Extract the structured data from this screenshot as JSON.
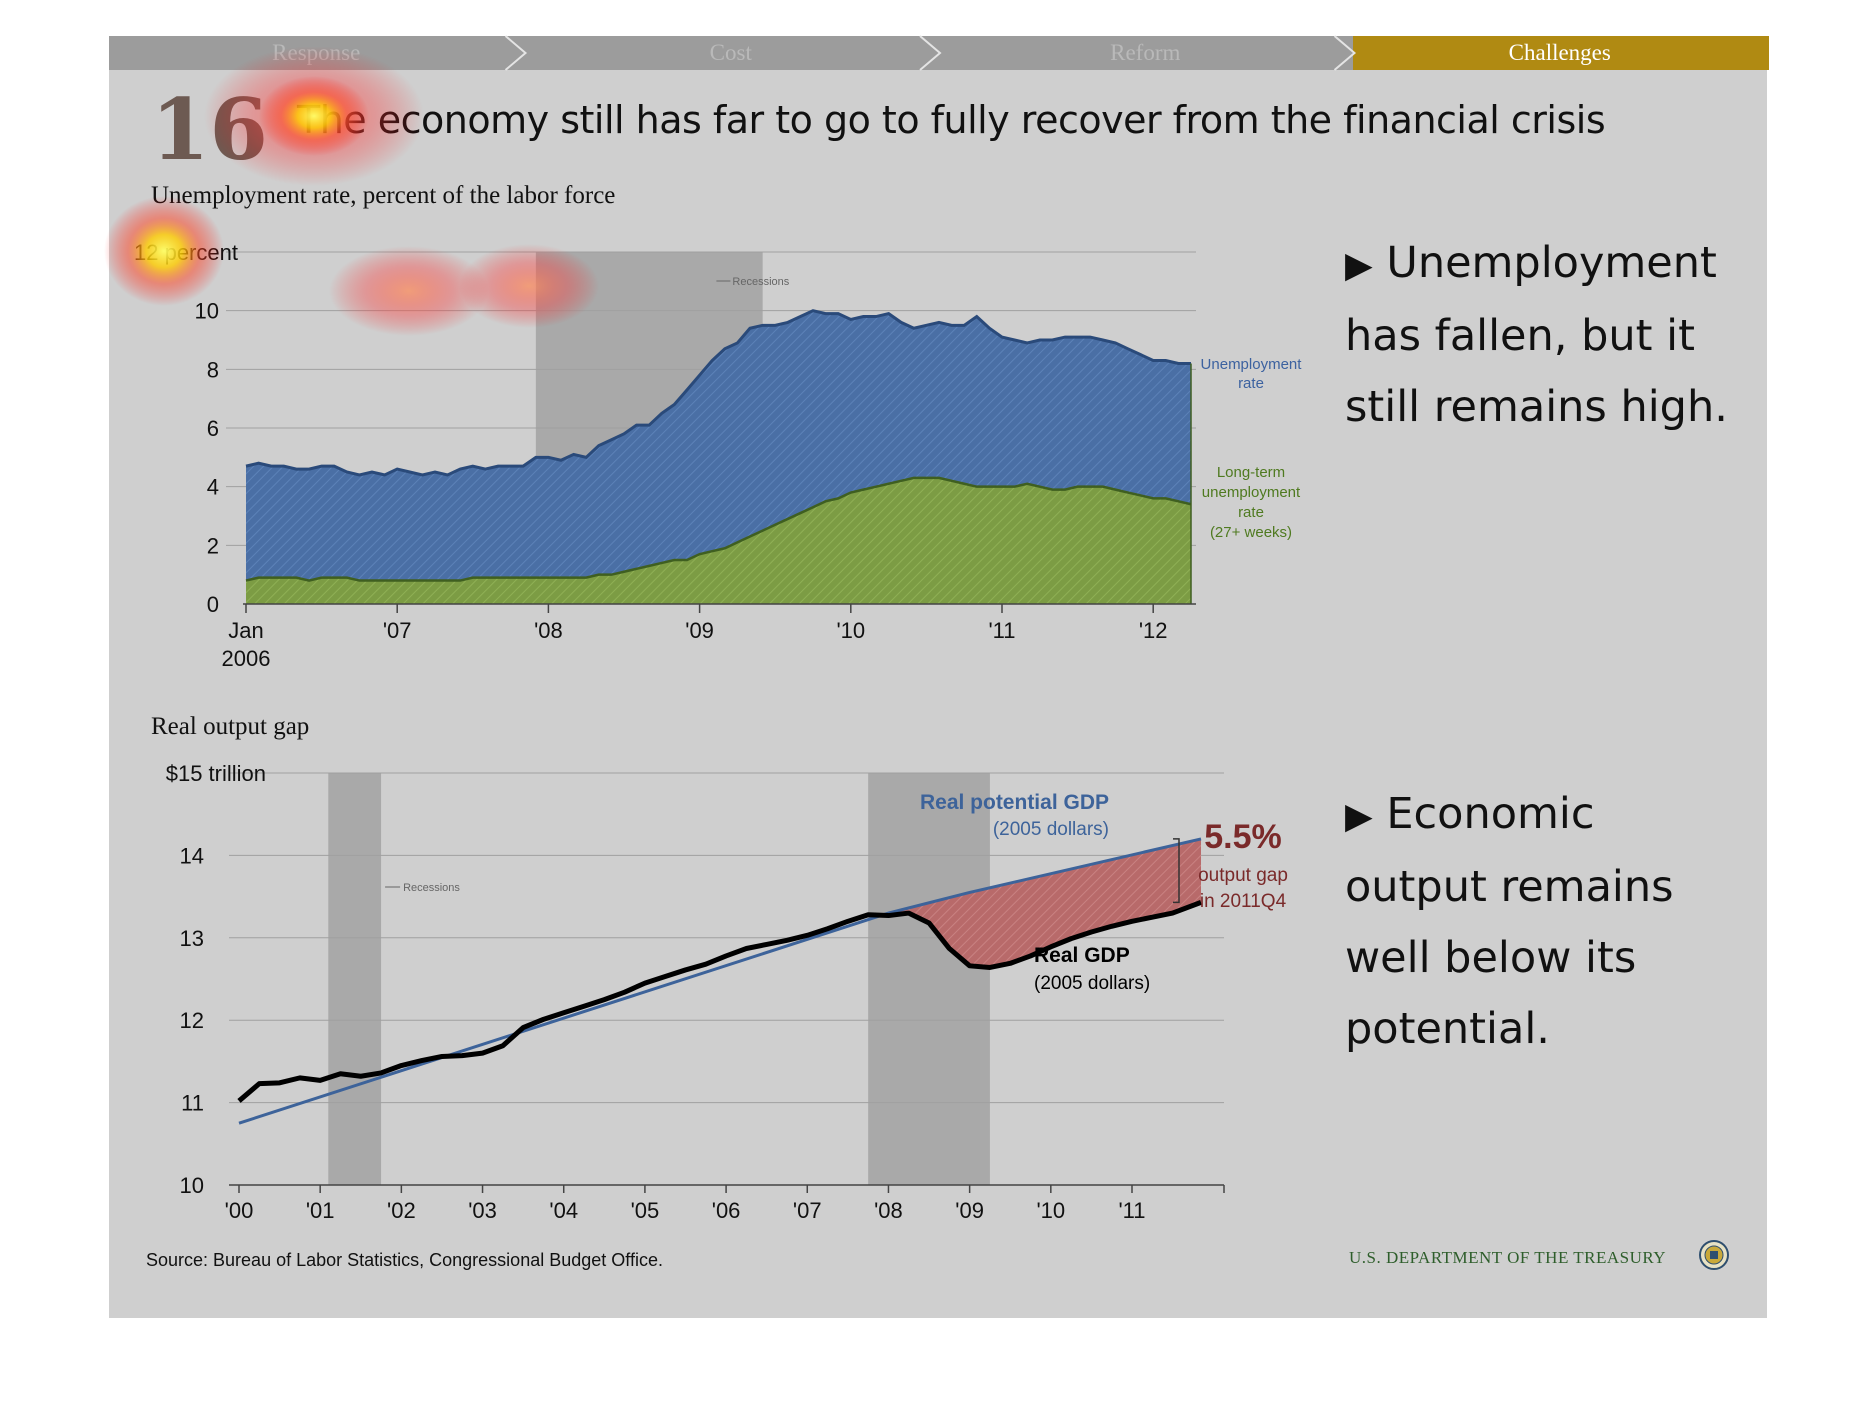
{
  "nav": {
    "tabs": [
      {
        "label": "Response",
        "active": false
      },
      {
        "label": "Cost",
        "active": false
      },
      {
        "label": "Reform",
        "active": false
      },
      {
        "label": "Challenges",
        "active": true
      }
    ],
    "inactive_color": "#9c9c9c",
    "active_color": "#b08a12"
  },
  "slide": {
    "number": "16",
    "title": "The economy still has far to go to fully recover from the financial crisis"
  },
  "bullets": [
    {
      "text": "Unemployment has fallen, but it still remains high."
    },
    {
      "text": "Economic output remains well below its potential."
    }
  ],
  "footer": {
    "source": "Source: Bureau of Labor Statistics, Congressional Budget Office.",
    "agency": "U.S. DEPARTMENT OF THE TREASURY",
    "seal_icon": "treasury-seal-icon"
  },
  "chart_data": [
    {
      "type": "area",
      "title": "Unemployment rate, percent of the labor force",
      "ylim": [
        0,
        12
      ],
      "yticks": [
        {
          "value": 0,
          "label": "0"
        },
        {
          "value": 2,
          "label": "2"
        },
        {
          "value": 4,
          "label": "4"
        },
        {
          "value": 6,
          "label": "6"
        },
        {
          "value": 8,
          "label": "8"
        },
        {
          "value": 10,
          "label": "10"
        },
        {
          "value": 12,
          "label": "12 percent"
        }
      ],
      "xticks": [
        {
          "x": 2006,
          "label": "Jan",
          "label2": "2006"
        },
        {
          "x": 2007,
          "label": "'07"
        },
        {
          "x": 2008,
          "label": "'08"
        },
        {
          "x": 2009,
          "label": "'09"
        },
        {
          "x": 2010,
          "label": "'10"
        },
        {
          "x": 2011,
          "label": "'11"
        },
        {
          "x": 2012,
          "label": "'12"
        }
      ],
      "xlim": [
        2006,
        2012.25
      ],
      "recession": {
        "start": 2007.917,
        "end": 2009.417,
        "label": "Recessions"
      },
      "grid": true,
      "series": [
        {
          "name": "Unemployment rate",
          "color": "#4a6fa5",
          "x": [
            2006,
            2006.083,
            2006.167,
            2006.25,
            2006.333,
            2006.417,
            2006.5,
            2006.583,
            2006.667,
            2006.75,
            2006.833,
            2006.917,
            2007,
            2007.083,
            2007.167,
            2007.25,
            2007.333,
            2007.417,
            2007.5,
            2007.583,
            2007.667,
            2007.75,
            2007.833,
            2007.917,
            2008,
            2008.083,
            2008.167,
            2008.25,
            2008.333,
            2008.417,
            2008.5,
            2008.583,
            2008.667,
            2008.75,
            2008.833,
            2008.917,
            2009,
            2009.083,
            2009.167,
            2009.25,
            2009.333,
            2009.417,
            2009.5,
            2009.583,
            2009.667,
            2009.75,
            2009.833,
            2009.917,
            2010,
            2010.083,
            2010.167,
            2010.25,
            2010.333,
            2010.417,
            2010.5,
            2010.583,
            2010.667,
            2010.75,
            2010.833,
            2010.917,
            2011,
            2011.083,
            2011.167,
            2011.25,
            2011.333,
            2011.417,
            2011.5,
            2011.583,
            2011.667,
            2011.75,
            2011.833,
            2011.917,
            2012,
            2012.083,
            2012.167,
            2012.25
          ],
          "values": [
            4.7,
            4.8,
            4.7,
            4.7,
            4.6,
            4.6,
            4.7,
            4.7,
            4.5,
            4.4,
            4.5,
            4.4,
            4.6,
            4.5,
            4.4,
            4.5,
            4.4,
            4.6,
            4.7,
            4.6,
            4.7,
            4.7,
            4.7,
            5.0,
            5.0,
            4.9,
            5.1,
            5.0,
            5.4,
            5.6,
            5.8,
            6.1,
            6.1,
            6.5,
            6.8,
            7.3,
            7.8,
            8.3,
            8.7,
            8.9,
            9.4,
            9.5,
            9.5,
            9.6,
            9.8,
            10.0,
            9.9,
            9.9,
            9.7,
            9.8,
            9.8,
            9.9,
            9.6,
            9.4,
            9.5,
            9.6,
            9.5,
            9.5,
            9.8,
            9.4,
            9.1,
            9.0,
            8.9,
            9.0,
            9.0,
            9.1,
            9.1,
            9.1,
            9.0,
            8.9,
            8.7,
            8.5,
            8.3,
            8.3,
            8.2,
            8.2
          ]
        },
        {
          "name": "Long-term unemployment rate (27+ weeks)",
          "color": "#7c9c44",
          "x": [
            2006,
            2006.083,
            2006.167,
            2006.25,
            2006.333,
            2006.417,
            2006.5,
            2006.583,
            2006.667,
            2006.75,
            2006.833,
            2006.917,
            2007,
            2007.083,
            2007.167,
            2007.25,
            2007.333,
            2007.417,
            2007.5,
            2007.583,
            2007.667,
            2007.75,
            2007.833,
            2007.917,
            2008,
            2008.083,
            2008.167,
            2008.25,
            2008.333,
            2008.417,
            2008.5,
            2008.583,
            2008.667,
            2008.75,
            2008.833,
            2008.917,
            2009,
            2009.083,
            2009.167,
            2009.25,
            2009.333,
            2009.417,
            2009.5,
            2009.583,
            2009.667,
            2009.75,
            2009.833,
            2009.917,
            2010,
            2010.083,
            2010.167,
            2010.25,
            2010.333,
            2010.417,
            2010.5,
            2010.583,
            2010.667,
            2010.75,
            2010.833,
            2010.917,
            2011,
            2011.083,
            2011.167,
            2011.25,
            2011.333,
            2011.417,
            2011.5,
            2011.583,
            2011.667,
            2011.75,
            2011.833,
            2011.917,
            2012,
            2012.083,
            2012.167,
            2012.25
          ],
          "values": [
            0.8,
            0.9,
            0.9,
            0.9,
            0.9,
            0.8,
            0.9,
            0.9,
            0.9,
            0.8,
            0.8,
            0.8,
            0.8,
            0.8,
            0.8,
            0.8,
            0.8,
            0.8,
            0.9,
            0.9,
            0.9,
            0.9,
            0.9,
            0.9,
            0.9,
            0.9,
            0.9,
            0.9,
            1.0,
            1.0,
            1.1,
            1.2,
            1.3,
            1.4,
            1.5,
            1.5,
            1.7,
            1.8,
            1.9,
            2.1,
            2.3,
            2.5,
            2.7,
            2.9,
            3.1,
            3.3,
            3.5,
            3.6,
            3.8,
            3.9,
            4.0,
            4.1,
            4.2,
            4.3,
            4.3,
            4.3,
            4.2,
            4.1,
            4.0,
            4.0,
            4.0,
            4.0,
            4.1,
            4.0,
            3.9,
            3.9,
            4.0,
            4.0,
            4.0,
            3.9,
            3.8,
            3.7,
            3.6,
            3.6,
            3.5,
            3.4
          ]
        }
      ],
      "labels": [
        {
          "series": 0,
          "lines": [
            "Unemployment",
            "rate"
          ]
        },
        {
          "series": 1,
          "lines": [
            "Long-term",
            "unemployment",
            "rate",
            "(27+ weeks)"
          ]
        }
      ]
    },
    {
      "type": "line",
      "title": "Real output gap",
      "ylim": [
        10,
        15
      ],
      "yticks": [
        {
          "value": 10,
          "label": "10"
        },
        {
          "value": 11,
          "label": "11"
        },
        {
          "value": 12,
          "label": "12"
        },
        {
          "value": 13,
          "label": "13"
        },
        {
          "value": 14,
          "label": "14"
        },
        {
          "value": 15,
          "label": "$15 trillion"
        }
      ],
      "xticks": [
        {
          "x": 2000,
          "label": "'00"
        },
        {
          "x": 2001,
          "label": "'01"
        },
        {
          "x": 2002,
          "label": "'02"
        },
        {
          "x": 2003,
          "label": "'03"
        },
        {
          "x": 2004,
          "label": "'04"
        },
        {
          "x": 2005,
          "label": "'05"
        },
        {
          "x": 2006,
          "label": "'06"
        },
        {
          "x": 2007,
          "label": "'07"
        },
        {
          "x": 2008,
          "label": "'08"
        },
        {
          "x": 2009,
          "label": "'09"
        },
        {
          "x": 2010,
          "label": "'10"
        },
        {
          "x": 2011,
          "label": "'11"
        }
      ],
      "xlim": [
        2000,
        2011.9
      ],
      "grid": true,
      "recessions": [
        {
          "start": 2001.1,
          "end": 2001.75,
          "label": "Recessions"
        },
        {
          "start": 2007.75,
          "end": 2009.25
        }
      ],
      "series": [
        {
          "name": "Real potential GDP",
          "subtitle": "(2005 dollars)",
          "color": "#3d639a",
          "x": [
            2000,
            2008,
            2009,
            2011.85
          ],
          "values": [
            10.75,
            13.3,
            13.55,
            14.2
          ]
        },
        {
          "name": "Real GDP",
          "subtitle": "(2005 dollars)",
          "color": "#000000",
          "x": [
            2000,
            2000.25,
            2000.5,
            2000.75,
            2001,
            2001.25,
            2001.5,
            2001.75,
            2002,
            2002.25,
            2002.5,
            2002.75,
            2003,
            2003.25,
            2003.5,
            2003.75,
            2004,
            2004.25,
            2004.5,
            2004.75,
            2005,
            2005.25,
            2005.5,
            2005.75,
            2006,
            2006.25,
            2006.5,
            2006.75,
            2007,
            2007.25,
            2007.5,
            2007.75,
            2008,
            2008.25,
            2008.5,
            2008.75,
            2009,
            2009.25,
            2009.5,
            2009.75,
            2010,
            2010.25,
            2010.5,
            2010.75,
            2011,
            2011.25,
            2011.5,
            2011.85
          ],
          "values": [
            11.02,
            11.23,
            11.24,
            11.3,
            11.27,
            11.35,
            11.32,
            11.36,
            11.45,
            11.51,
            11.56,
            11.57,
            11.6,
            11.69,
            11.91,
            12.01,
            12.09,
            12.17,
            12.25,
            12.34,
            12.45,
            12.53,
            12.61,
            12.68,
            12.78,
            12.87,
            12.92,
            12.97,
            13.03,
            13.11,
            13.2,
            13.28,
            13.27,
            13.3,
            13.18,
            12.87,
            12.66,
            12.64,
            12.69,
            12.78,
            12.89,
            12.99,
            13.07,
            13.14,
            13.2,
            13.25,
            13.3,
            13.43
          ]
        }
      ],
      "gap": {
        "value": "5.5%",
        "lines": [
          "output gap",
          "in 2011Q4"
        ],
        "color": "#7a2a2a",
        "fill": "#b86a6a"
      }
    }
  ]
}
